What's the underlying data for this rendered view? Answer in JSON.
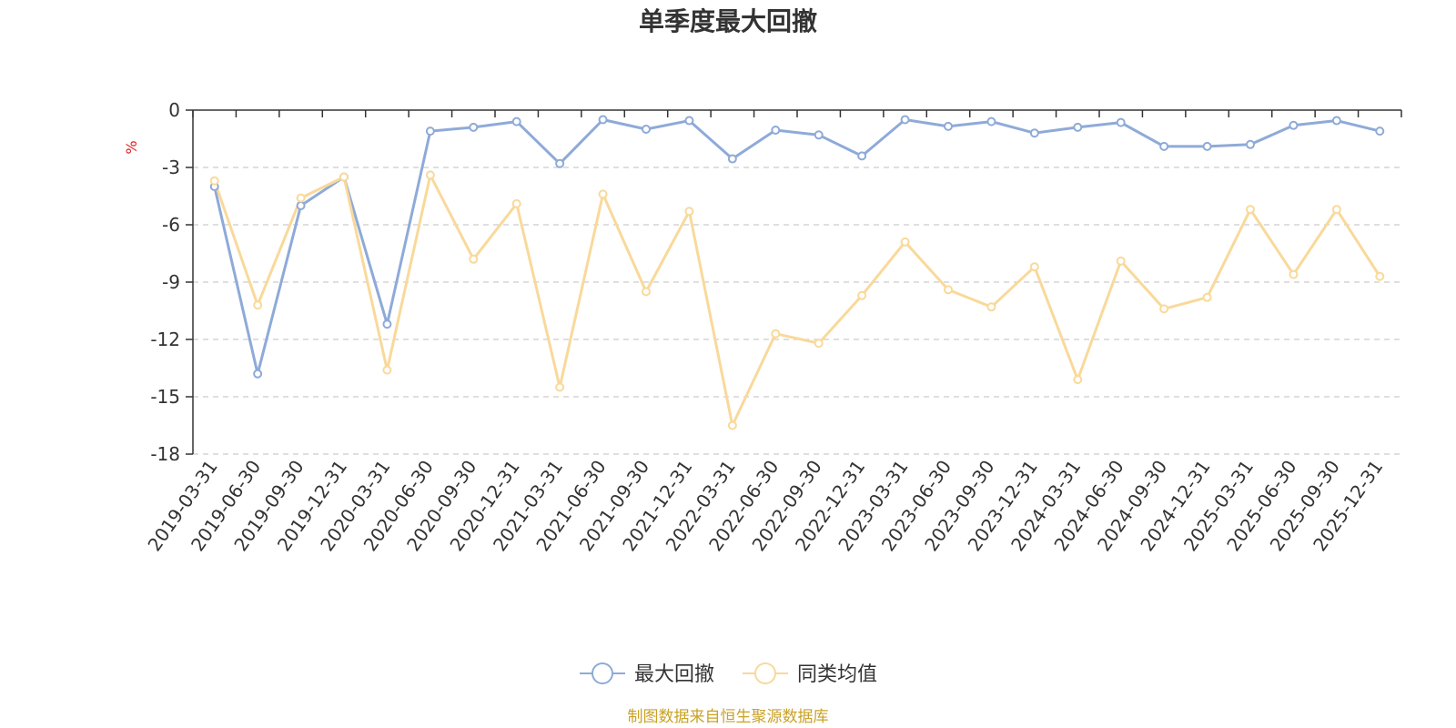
{
  "chart_data": {
    "type": "line",
    "title": "单季度最大回撤",
    "ylabel": "%",
    "ylim": [
      -18,
      0
    ],
    "yticks": [
      0,
      -3,
      -6,
      -9,
      -12,
      -15,
      -18
    ],
    "grid": true,
    "legend_position": "bottom-center",
    "categories": [
      "2019-03-31",
      "2019-06-30",
      "2019-09-30",
      "2019-12-31",
      "2020-03-31",
      "2020-06-30",
      "2020-09-30",
      "2020-12-31",
      "2021-03-31",
      "2021-06-30",
      "2021-09-30",
      "2021-12-31",
      "2022-03-31",
      "2022-06-30",
      "2022-09-30",
      "2022-12-31",
      "2023-03-31",
      "2023-06-30",
      "2023-09-30",
      "2023-12-31",
      "2024-03-31",
      "2024-06-30",
      "2024-09-30",
      "2024-12-31",
      "2025-03-31",
      "2025-06-30",
      "2025-09-30",
      "2025-12-31"
    ],
    "series": [
      {
        "name": "最大回撤",
        "color": "#8eaad8",
        "values": [
          -4.0,
          -13.8,
          -5.0,
          -3.5,
          -11.2,
          -1.1,
          -0.9,
          -0.6,
          -2.8,
          -0.5,
          -1.0,
          -0.55,
          -2.55,
          -1.05,
          -1.3,
          -2.4,
          -0.5,
          -0.85,
          -0.6,
          -1.2,
          -0.9,
          -0.65,
          -1.9,
          -1.9,
          -1.8,
          -0.8,
          -0.55,
          -1.1
        ]
      },
      {
        "name": "同类均值",
        "color": "#f9d99a",
        "values": [
          -3.7,
          -10.2,
          -4.6,
          -3.5,
          -13.6,
          -3.4,
          -7.8,
          -4.9,
          -14.5,
          -4.4,
          -9.5,
          -5.3,
          -16.5,
          -11.7,
          -12.2,
          -9.7,
          -6.9,
          -9.4,
          -10.3,
          -8.2,
          -14.1,
          -7.9,
          -10.4,
          -9.8,
          -5.2,
          -8.6,
          -5.2,
          -8.7
        ]
      }
    ],
    "source": "制图数据来自恒生聚源数据库"
  }
}
